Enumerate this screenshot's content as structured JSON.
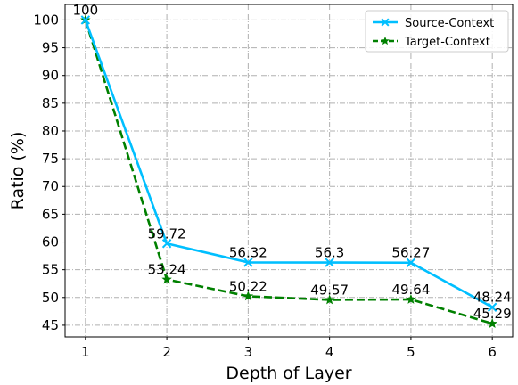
{
  "chart_data": {
    "type": "line",
    "xlabel": "Depth of Layer",
    "ylabel": "Ratio (%)",
    "x": [
      1,
      2,
      3,
      4,
      5,
      6
    ],
    "xticks": [
      "1",
      "2",
      "3",
      "4",
      "5",
      "6"
    ],
    "yticks": [
      "45",
      "50",
      "55",
      "60",
      "65",
      "70",
      "75",
      "80",
      "85",
      "90",
      "95",
      "100"
    ],
    "xlim": [
      0.75,
      6.25
    ],
    "ylim": [
      42.9,
      102.8
    ],
    "grid": true,
    "legend_position": "top-right",
    "series": [
      {
        "name": "Source-Context",
        "color": "#00bfff",
        "line_style": "solid",
        "marker": "x-mark",
        "values": [
          100,
          59.72,
          56.32,
          56.3,
          56.27,
          48.24
        ],
        "value_labels": [
          "100",
          "59.72",
          "56.32",
          "56.3",
          "56.27",
          "48.24"
        ]
      },
      {
        "name": "Target-Context",
        "color": "#008000",
        "line_style": "dashed",
        "marker": "star",
        "values": [
          100,
          53.24,
          50.22,
          49.57,
          49.64,
          45.29
        ],
        "value_labels": [
          "100",
          "53.24",
          "50.22",
          "49.57",
          "49.64",
          "45.29"
        ]
      }
    ]
  }
}
